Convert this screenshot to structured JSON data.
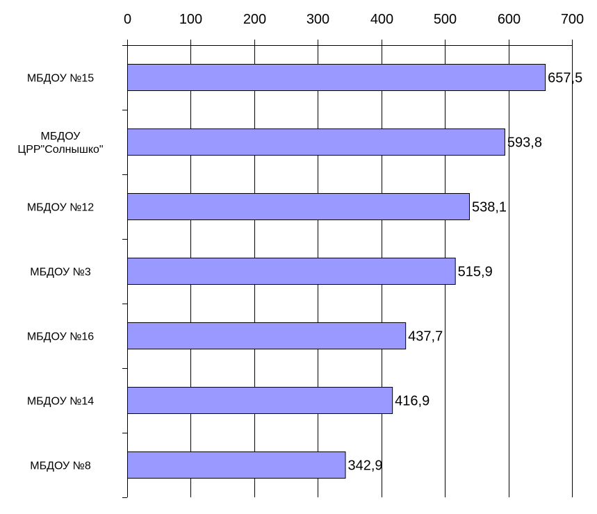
{
  "chart_data": {
    "type": "bar",
    "orientation": "horizontal",
    "categories": [
      "МБДОУ №15",
      "МБДОУ ЦРР\"Солнышко\"",
      "МБДОУ №12",
      "МБДОУ №3",
      "МБДОУ №16",
      "МБДОУ №14",
      "МБДОУ №8"
    ],
    "category_lines": [
      [
        "МБДОУ №15"
      ],
      [
        "МБДОУ",
        "ЦРР\"Солнышко\""
      ],
      [
        "МБДОУ №12"
      ],
      [
        "МБДОУ №3"
      ],
      [
        "МБДОУ №16"
      ],
      [
        "МБДОУ №14"
      ],
      [
        "МБДОУ №8"
      ]
    ],
    "values": [
      657.5,
      593.8,
      538.1,
      515.9,
      437.7,
      416.9,
      342.9
    ],
    "value_labels": [
      "657,5",
      "593,8",
      "538,1",
      "515,9",
      "437,7",
      "416,9",
      "342,9"
    ],
    "xlim": [
      0,
      700
    ],
    "x_ticks": [
      0,
      100,
      200,
      300,
      400,
      500,
      600,
      700
    ],
    "x_tick_labels": [
      "0",
      "100",
      "200",
      "300",
      "400",
      "500",
      "600",
      "700"
    ],
    "x_axis_position": "top",
    "grid": true,
    "bar_color": "#9999ff",
    "title": "",
    "xlabel": "",
    "ylabel": ""
  }
}
